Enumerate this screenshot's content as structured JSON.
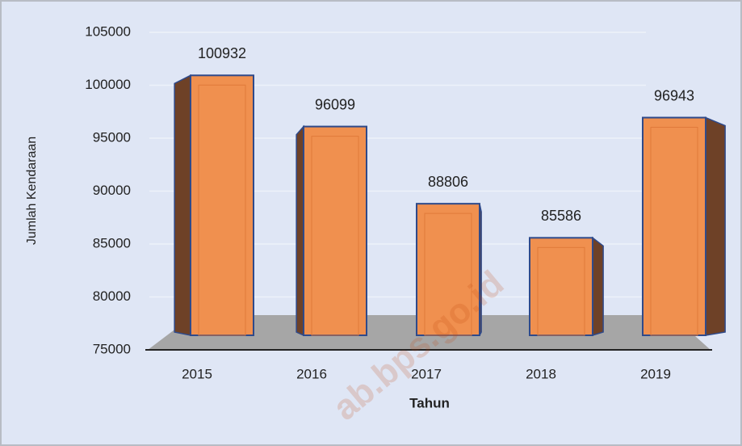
{
  "chart_data": {
    "type": "bar",
    "x_label": "Tahun",
    "y_label": "Jumlah Kendaraan",
    "categories": [
      "2015",
      "2016",
      "2017",
      "2018",
      "2019"
    ],
    "values": [
      100932,
      96099,
      88806,
      85586,
      96943
    ],
    "color": "#f0904f",
    "ylim": [
      75000,
      105000
    ],
    "yticks": [
      75000,
      80000,
      85000,
      90000,
      95000,
      100000,
      105000
    ],
    "grid": true,
    "watermark": "ab.bps.go.id"
  }
}
